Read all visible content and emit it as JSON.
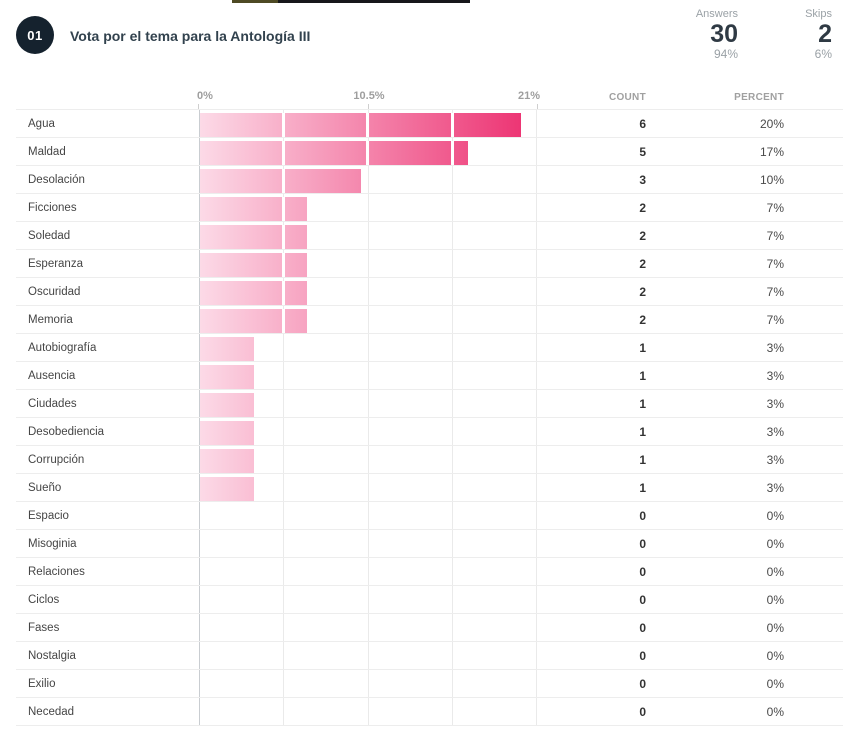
{
  "top_strip": {
    "olive_color": "#4e4a24",
    "black_color": "#17171b"
  },
  "question": {
    "number": "01",
    "title": "Vota por el tema para la Antología III"
  },
  "stats": {
    "answers": {
      "label": "Answers",
      "count": "30",
      "percent": "94%"
    },
    "skips": {
      "label": "Skips",
      "count": "2",
      "percent": "6%"
    }
  },
  "table_headers": {
    "count": "COUNT",
    "percent": "PERCENT"
  },
  "chart_data": {
    "type": "bar",
    "orientation": "horizontal",
    "title": "Vota por el tema para la Antología III",
    "axis_tick_labels": [
      "0%",
      "10.5%",
      "21%"
    ],
    "xlim": [
      0,
      21
    ],
    "grid": true,
    "bar_gradient": [
      "#fcdae7",
      "#ec2e6f"
    ],
    "rows": [
      {
        "label": "Agua",
        "count": "6",
        "percent": "20%",
        "value": 20
      },
      {
        "label": "Maldad",
        "count": "5",
        "percent": "17%",
        "value": 16.67
      },
      {
        "label": "Desolación",
        "count": "3",
        "percent": "10%",
        "value": 10
      },
      {
        "label": "Ficciones",
        "count": "2",
        "percent": "7%",
        "value": 6.67
      },
      {
        "label": "Soledad",
        "count": "2",
        "percent": "7%",
        "value": 6.67
      },
      {
        "label": "Esperanza",
        "count": "2",
        "percent": "7%",
        "value": 6.67
      },
      {
        "label": "Oscuridad",
        "count": "2",
        "percent": "7%",
        "value": 6.67
      },
      {
        "label": "Memoria",
        "count": "2",
        "percent": "7%",
        "value": 6.67
      },
      {
        "label": "Autobiografía",
        "count": "1",
        "percent": "3%",
        "value": 3.33
      },
      {
        "label": "Ausencia",
        "count": "1",
        "percent": "3%",
        "value": 3.33
      },
      {
        "label": "Ciudades",
        "count": "1",
        "percent": "3%",
        "value": 3.33
      },
      {
        "label": "Desobediencia",
        "count": "1",
        "percent": "3%",
        "value": 3.33
      },
      {
        "label": "Corrupción",
        "count": "1",
        "percent": "3%",
        "value": 3.33
      },
      {
        "label": "Sueño",
        "count": "1",
        "percent": "3%",
        "value": 3.33
      },
      {
        "label": "Espacio",
        "count": "0",
        "percent": "0%",
        "value": 0
      },
      {
        "label": "Misoginia",
        "count": "0",
        "percent": "0%",
        "value": 0
      },
      {
        "label": "Relaciones",
        "count": "0",
        "percent": "0%",
        "value": 0
      },
      {
        "label": "Ciclos",
        "count": "0",
        "percent": "0%",
        "value": 0
      },
      {
        "label": "Fases",
        "count": "0",
        "percent": "0%",
        "value": 0
      },
      {
        "label": "Nostalgia",
        "count": "0",
        "percent": "0%",
        "value": 0
      },
      {
        "label": "Exilio",
        "count": "0",
        "percent": "0%",
        "value": 0
      },
      {
        "label": "Necedad",
        "count": "0",
        "percent": "0%",
        "value": 0
      }
    ]
  }
}
